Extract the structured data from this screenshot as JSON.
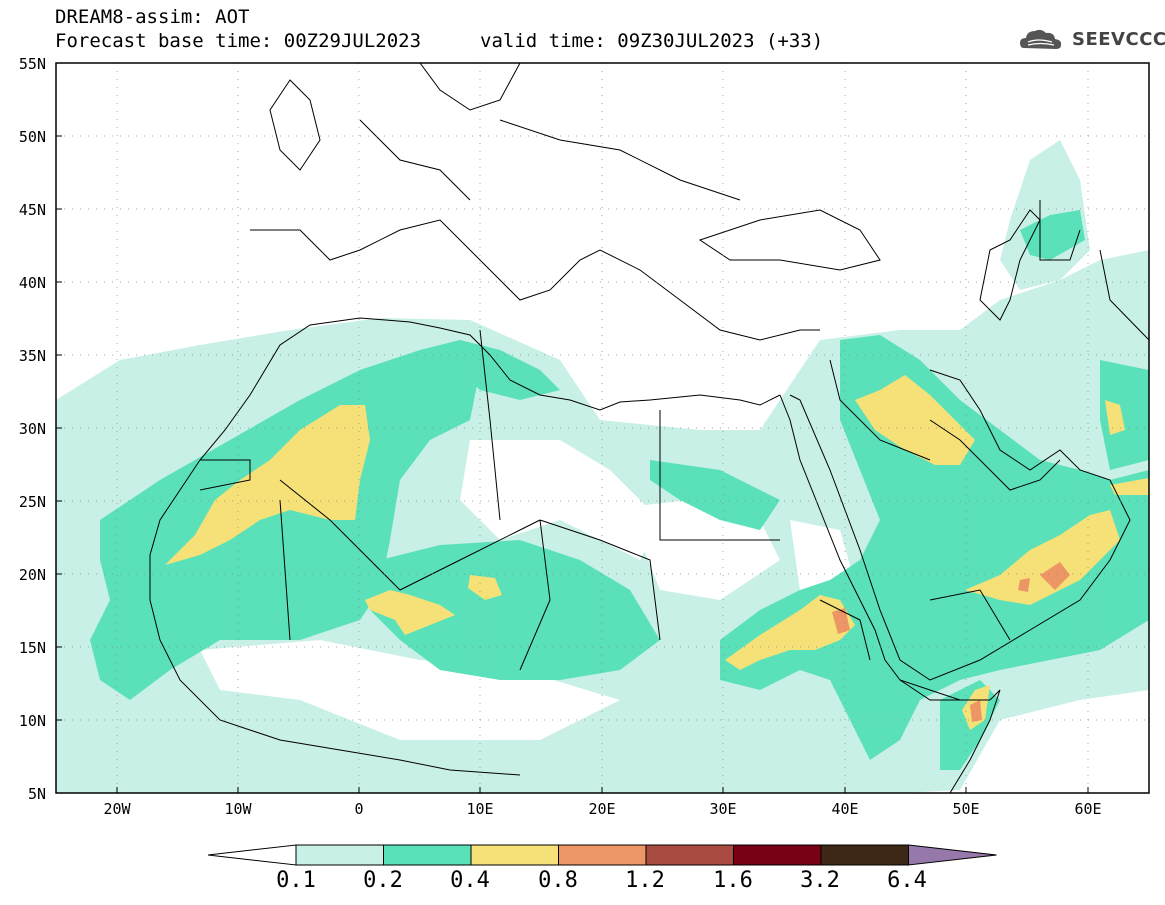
{
  "header": {
    "title": "DREAM8-assim: AOT",
    "base_time": "Forecast base time: 00Z29JUL2023",
    "valid_time": "valid time: 09Z30JUL2023 (+33)",
    "logo_text": "SEEVCCC"
  },
  "map": {
    "lat_labels": [
      "55N",
      "50N",
      "45N",
      "40N",
      "35N",
      "30N",
      "25N",
      "20N",
      "15N",
      "10N",
      "5N"
    ],
    "lon_labels": [
      "20W",
      "10W",
      "0",
      "10E",
      "20E",
      "30E",
      "40E",
      "50E",
      "60E"
    ],
    "extent": {
      "lon_min": -25,
      "lon_max": 65,
      "lat_min": 5,
      "lat_max": 55
    }
  },
  "colorbar": {
    "levels": [
      "0.1",
      "0.2",
      "0.4",
      "0.8",
      "1.2",
      "1.6",
      "3.2",
      "6.4"
    ],
    "colors": [
      "#ffffff",
      "#c8f0e6",
      "#5ae1b9",
      "#f5e178",
      "#eb9664",
      "#aa4b41",
      "#780014",
      "#3c2814",
      "#9678aa"
    ]
  }
}
